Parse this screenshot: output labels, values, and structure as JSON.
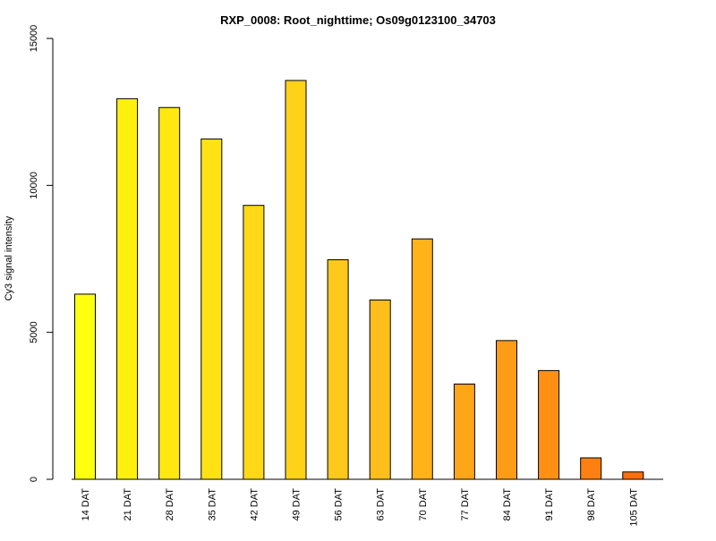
{
  "chart_data": {
    "type": "bar",
    "title": "RXP_0008: Root_nighttime; Os09g0123100_34703",
    "xlabel": "",
    "ylabel": "Cy3 signal intensity",
    "ylim": [
      0,
      15000
    ],
    "yticks": [
      0,
      5000,
      10000,
      15000
    ],
    "grid": false,
    "categories": [
      "14 DAT",
      "21 DAT",
      "28 DAT",
      "35 DAT",
      "42 DAT",
      "49 DAT",
      "56 DAT",
      "63 DAT",
      "70 DAT",
      "77 DAT",
      "84 DAT",
      "91 DAT",
      "98 DAT",
      "105 DAT"
    ],
    "values": [
      6300,
      12950,
      12650,
      11580,
      9320,
      13570,
      7470,
      6100,
      8180,
      3240,
      4720,
      3700,
      730,
      250
    ],
    "colors": [
      "#ffff10",
      "#fff010",
      "#ffe812",
      "#ffe214",
      "#ffd817",
      "#ffd21a",
      "#ffc81c",
      "#ffbe1c",
      "#ffb21a",
      "#ffa518",
      "#ff9c16",
      "#ff9014",
      "#ff8010",
      "#ff6e0c"
    ]
  }
}
